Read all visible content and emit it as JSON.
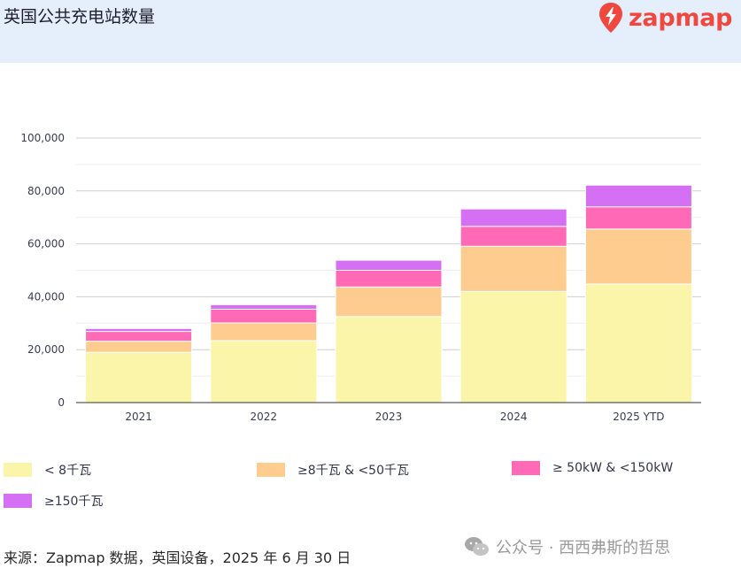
{
  "header": {
    "title": "英国公共充电站数量",
    "brand": "zapmap"
  },
  "chart_data": {
    "type": "bar",
    "stacked": true,
    "categories": [
      "2021",
      "2022",
      "2023",
      "2024",
      "2025 YTD"
    ],
    "series": [
      {
        "name": "< 8千瓦",
        "color": "#faf5a9",
        "values": [
          19000,
          23400,
          32500,
          42000,
          44800
        ]
      },
      {
        "name": "≥8千瓦 & <50千瓦",
        "color": "#ffcc8f",
        "values": [
          4200,
          6700,
          11200,
          17100,
          20800
        ]
      },
      {
        "name": "≥ 50kW & <150kW",
        "color": "#ff69b5",
        "values": [
          3700,
          5200,
          6300,
          7500,
          8400
        ]
      },
      {
        "name": "≥150千瓦",
        "color": "#d56ff4",
        "values": [
          1100,
          1700,
          3800,
          6600,
          8200
        ]
      }
    ],
    "ylim": [
      0,
      100000
    ],
    "yticks": [
      "0",
      "20,000",
      "40,000",
      "60,000",
      "80,000",
      "100,000"
    ],
    "ytick_values": [
      0,
      20000,
      40000,
      60000,
      80000,
      100000
    ],
    "minor_grid_values": [
      10000,
      30000,
      50000,
      70000,
      90000
    ],
    "grid": true,
    "legend_position": "bottom",
    "xlabel": "",
    "ylabel": ""
  },
  "footer": {
    "source": "来源：Zapmap 数据，英国设备，2025 年 6 月 30 日",
    "watermark": "公众号 · 西西弗斯的哲思"
  },
  "colors": {
    "header_bg": "#e5eefb",
    "brand": "#f0473f"
  }
}
